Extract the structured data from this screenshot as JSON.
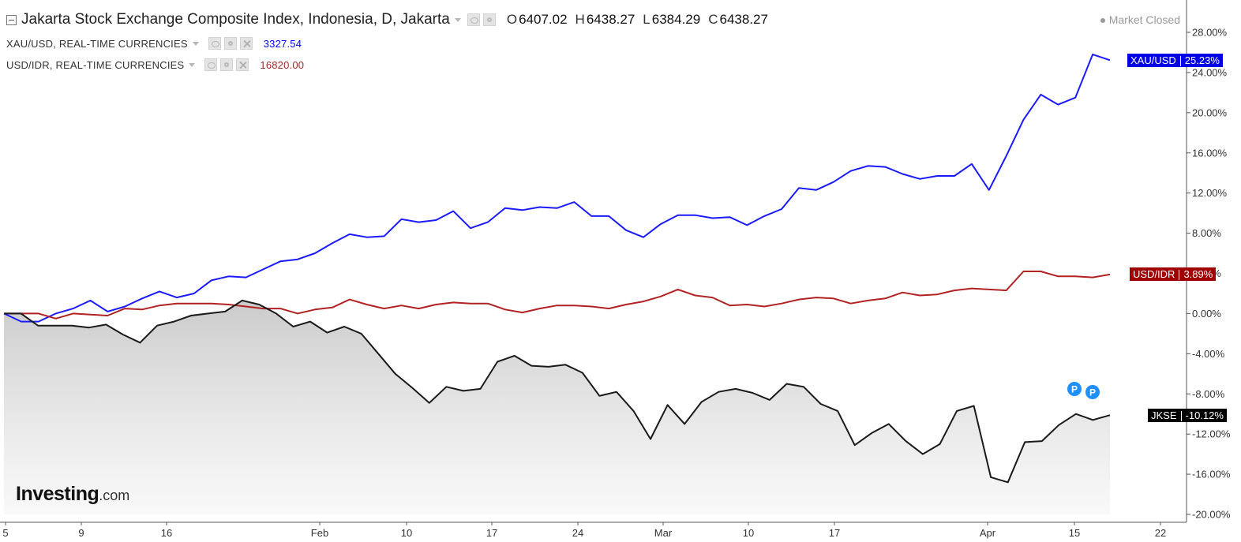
{
  "header": {
    "main": {
      "title": "Jakarta Stock Exchange Composite Index, Indonesia, D, Jakarta",
      "ohlc": [
        {
          "k": "O",
          "v": "6407.02"
        },
        {
          "k": "H",
          "v": "6438.27"
        },
        {
          "k": "L",
          "v": "6384.29"
        },
        {
          "k": "C",
          "v": "6438.27"
        }
      ]
    },
    "overlays": [
      {
        "name": "XAU/USD, REAL-TIME CURRENCIES",
        "value": "3327.54",
        "color": "#0000ff"
      },
      {
        "name": "USD/IDR, REAL-TIME CURRENCIES",
        "value": "16820.00",
        "color": "#a52a2a"
      }
    ],
    "market_status": "Market Closed"
  },
  "logo": {
    "main": "Investing",
    "suffix": ".com"
  },
  "price_labels": [
    {
      "series": "XAU/USD",
      "value": "25.23%",
      "bg": "#0000e6"
    },
    {
      "series": "USD/IDR",
      "value": "3.89%",
      "bg": "#a00000"
    },
    {
      "series": "JKSE",
      "value": "-10.12%",
      "bg": "#000000"
    }
  ],
  "markers": [
    "P",
    "P"
  ],
  "chart_data": {
    "type": "line",
    "y_axis": {
      "ticks": [
        "28.00%",
        "24.00%",
        "20.00%",
        "16.00%",
        "12.00%",
        "8.00%",
        "4.00%",
        "0.00%",
        "-4.00%",
        "-8.00%",
        "-12.00%",
        "-16.00%",
        "-20.00%"
      ],
      "ylim": [
        -20,
        28
      ],
      "position": "right"
    },
    "x_axis": {
      "ticks": [
        {
          "label": "5",
          "date": "2025-01-05"
        },
        {
          "label": "9",
          "date": "2025-01-09"
        },
        {
          "label": "16",
          "date": "2025-01-16"
        },
        {
          "label": "Feb",
          "date": "2025-02-01"
        },
        {
          "label": "10",
          "date": "2025-02-10"
        },
        {
          "label": "17",
          "date": "2025-02-17"
        },
        {
          "label": "24",
          "date": "2025-02-24"
        },
        {
          "label": "Mar",
          "date": "2025-03-01"
        },
        {
          "label": "10",
          "date": "2025-03-10"
        },
        {
          "label": "17",
          "date": "2025-03-17"
        },
        {
          "label": "Apr",
          "date": "2025-04-01"
        },
        {
          "label": "15",
          "date": "2025-04-15"
        },
        {
          "label": "22",
          "date": "2025-04-22"
        }
      ]
    },
    "series": [
      {
        "name": "XAU/USD",
        "color": "#1a1aff",
        "points": [
          [
            "2025-01-05",
            0
          ],
          [
            "2025-01-06",
            -0.8
          ],
          [
            "2025-01-07",
            -0.8
          ],
          [
            "2025-01-08",
            0
          ],
          [
            "2025-01-09",
            0.5
          ],
          [
            "2025-01-10",
            1.3
          ],
          [
            "2025-01-11",
            0.2
          ],
          [
            "2025-01-12",
            0.7
          ],
          [
            "2025-01-13",
            1.5
          ],
          [
            "2025-01-14",
            2.2
          ],
          [
            "2025-01-15",
            1.6
          ],
          [
            "2025-01-16",
            2.0
          ],
          [
            "2025-01-17",
            3.3
          ],
          [
            "2025-01-18",
            3.7
          ],
          [
            "2025-01-19",
            3.6
          ],
          [
            "2025-01-20",
            4.4
          ],
          [
            "2025-01-21",
            5.2
          ],
          [
            "2025-01-22",
            5.4
          ],
          [
            "2025-01-23",
            6.0
          ],
          [
            "2025-01-24",
            7.0
          ],
          [
            "2025-01-25",
            7.9
          ],
          [
            "2025-01-26",
            7.6
          ],
          [
            "2025-01-27",
            7.7
          ],
          [
            "2025-01-28",
            9.4
          ],
          [
            "2025-01-29",
            9.1
          ],
          [
            "2025-01-30",
            9.3
          ],
          [
            "2025-01-31",
            10.2
          ],
          [
            "2025-02-01",
            8.5
          ],
          [
            "2025-02-02",
            9.1
          ],
          [
            "2025-02-03",
            10.5
          ],
          [
            "2025-02-04",
            10.3
          ],
          [
            "2025-02-05",
            10.6
          ],
          [
            "2025-02-06",
            10.5
          ],
          [
            "2025-02-07",
            11.1
          ],
          [
            "2025-02-08",
            9.7
          ],
          [
            "2025-02-09",
            9.7
          ],
          [
            "2025-02-10",
            8.3
          ],
          [
            "2025-02-11",
            7.6
          ],
          [
            "2025-02-12",
            8.9
          ],
          [
            "2025-02-13",
            9.8
          ],
          [
            "2025-02-14",
            9.8
          ],
          [
            "2025-02-15",
            9.5
          ],
          [
            "2025-02-16",
            9.6
          ],
          [
            "2025-02-17",
            8.8
          ],
          [
            "2025-02-18",
            9.7
          ],
          [
            "2025-02-19",
            10.4
          ],
          [
            "2025-02-20",
            12.5
          ],
          [
            "2025-02-21",
            12.3
          ],
          [
            "2025-02-22",
            13.1
          ],
          [
            "2025-02-23",
            14.2
          ],
          [
            "2025-02-24",
            14.7
          ],
          [
            "2025-02-25",
            14.6
          ],
          [
            "2025-02-26",
            13.9
          ],
          [
            "2025-02-27",
            13.4
          ],
          [
            "2025-02-28",
            13.7
          ],
          [
            "2025-03-01",
            13.7
          ],
          [
            "2025-03-02",
            14.9
          ],
          [
            "2025-03-03",
            12.3
          ],
          [
            "2025-03-04",
            15.7
          ],
          [
            "2025-03-05",
            19.3
          ],
          [
            "2025-03-06",
            21.8
          ],
          [
            "2025-03-07",
            20.8
          ],
          [
            "2025-03-08",
            21.5
          ],
          [
            "2025-03-09",
            25.8
          ],
          [
            "2025-03-10",
            25.23
          ]
        ]
      },
      {
        "name": "USD/IDR",
        "color": "#b22222",
        "points": [
          [
            "2025-01-05",
            0
          ],
          [
            "2025-01-06",
            0
          ],
          [
            "2025-01-07",
            0
          ],
          [
            "2025-01-08",
            -0.5
          ],
          [
            "2025-01-09",
            0
          ],
          [
            "2025-01-10",
            -0.1
          ],
          [
            "2025-01-11",
            -0.2
          ],
          [
            "2025-01-12",
            0.5
          ],
          [
            "2025-01-13",
            0.4
          ],
          [
            "2025-01-14",
            0.8
          ],
          [
            "2025-01-15",
            1.0
          ],
          [
            "2025-01-16",
            1.0
          ],
          [
            "2025-01-17",
            1.0
          ],
          [
            "2025-01-18",
            0.9
          ],
          [
            "2025-01-19",
            0.7
          ],
          [
            "2025-01-20",
            0.5
          ],
          [
            "2025-01-21",
            0.5
          ],
          [
            "2025-01-22",
            0
          ],
          [
            "2025-01-23",
            0.4
          ],
          [
            "2025-01-24",
            0.6
          ],
          [
            "2025-01-25",
            1.4
          ],
          [
            "2025-01-26",
            0.9
          ],
          [
            "2025-01-27",
            0.5
          ],
          [
            "2025-01-28",
            0.8
          ],
          [
            "2025-01-29",
            0.5
          ],
          [
            "2025-01-30",
            0.9
          ],
          [
            "2025-01-31",
            1.1
          ],
          [
            "2025-02-01",
            1.0
          ],
          [
            "2025-02-02",
            1.0
          ],
          [
            "2025-02-03",
            0.4
          ],
          [
            "2025-02-04",
            0.1
          ],
          [
            "2025-02-05",
            0.5
          ],
          [
            "2025-02-06",
            0.8
          ],
          [
            "2025-02-07",
            0.8
          ],
          [
            "2025-02-08",
            0.7
          ],
          [
            "2025-02-09",
            0.5
          ],
          [
            "2025-02-10",
            0.9
          ],
          [
            "2025-02-11",
            1.2
          ],
          [
            "2025-02-12",
            1.7
          ],
          [
            "2025-02-13",
            2.4
          ],
          [
            "2025-02-14",
            1.8
          ],
          [
            "2025-02-15",
            1.6
          ],
          [
            "2025-02-16",
            0.8
          ],
          [
            "2025-02-17",
            0.9
          ],
          [
            "2025-02-18",
            0.7
          ],
          [
            "2025-02-19",
            1.0
          ],
          [
            "2025-02-20",
            1.4
          ],
          [
            "2025-02-21",
            1.6
          ],
          [
            "2025-02-22",
            1.5
          ],
          [
            "2025-02-23",
            1.0
          ],
          [
            "2025-02-24",
            1.3
          ],
          [
            "2025-02-25",
            1.5
          ],
          [
            "2025-02-26",
            2.1
          ],
          [
            "2025-02-27",
            1.8
          ],
          [
            "2025-02-28",
            1.9
          ],
          [
            "2025-03-01",
            2.3
          ],
          [
            "2025-03-02",
            2.5
          ],
          [
            "2025-03-03",
            2.4
          ],
          [
            "2025-03-04",
            2.3
          ],
          [
            "2025-03-05",
            4.2
          ],
          [
            "2025-03-06",
            4.2
          ],
          [
            "2025-03-07",
            3.7
          ],
          [
            "2025-03-08",
            3.7
          ],
          [
            "2025-03-09",
            3.6
          ],
          [
            "2025-03-10",
            3.89
          ]
        ]
      },
      {
        "name": "JKSE",
        "color": "#1a1a1a",
        "area": true,
        "points": [
          [
            "2025-01-05",
            0
          ],
          [
            "2025-01-06",
            0
          ],
          [
            "2025-01-07",
            -1.2
          ],
          [
            "2025-01-08",
            -1.2
          ],
          [
            "2025-01-09",
            -1.2
          ],
          [
            "2025-01-10",
            -1.4
          ],
          [
            "2025-01-11",
            -1.1
          ],
          [
            "2025-01-12",
            -2.1
          ],
          [
            "2025-01-13",
            -2.9
          ],
          [
            "2025-01-14",
            -1.2
          ],
          [
            "2025-01-15",
            -0.8
          ],
          [
            "2025-01-16",
            -0.2
          ],
          [
            "2025-01-17",
            0
          ],
          [
            "2025-01-18",
            0.2
          ],
          [
            "2025-01-19",
            1.3
          ],
          [
            "2025-01-20",
            0.9
          ],
          [
            "2025-01-21",
            0
          ],
          [
            "2025-01-22",
            -1.3
          ],
          [
            "2025-01-23",
            -0.8
          ],
          [
            "2025-01-24",
            -1.9
          ],
          [
            "2025-01-25",
            -1.3
          ],
          [
            "2025-01-26",
            -2.0
          ],
          [
            "2025-01-27",
            -4.0
          ],
          [
            "2025-01-28",
            -6.0
          ],
          [
            "2025-01-29",
            -7.4
          ],
          [
            "2025-01-30",
            -8.9
          ],
          [
            "2025-01-31",
            -7.3
          ],
          [
            "2025-02-01",
            -7.7
          ],
          [
            "2025-02-02",
            -7.5
          ],
          [
            "2025-02-03",
            -4.8
          ],
          [
            "2025-02-04",
            -4.2
          ],
          [
            "2025-02-05",
            -5.2
          ],
          [
            "2025-02-06",
            -5.3
          ],
          [
            "2025-02-07",
            -5.1
          ],
          [
            "2025-02-08",
            -5.9
          ],
          [
            "2025-02-09",
            -8.2
          ],
          [
            "2025-02-10",
            -7.8
          ],
          [
            "2025-02-11",
            -9.7
          ],
          [
            "2025-02-12",
            -12.5
          ],
          [
            "2025-02-13",
            -9.1
          ],
          [
            "2025-02-14",
            -11.0
          ],
          [
            "2025-02-15",
            -8.8
          ],
          [
            "2025-02-16",
            -7.8
          ],
          [
            "2025-02-17",
            -7.5
          ],
          [
            "2025-02-18",
            -7.9
          ],
          [
            "2025-02-19",
            -8.6
          ],
          [
            "2025-02-20",
            -7.0
          ],
          [
            "2025-02-21",
            -7.3
          ],
          [
            "2025-02-22",
            -9.0
          ],
          [
            "2025-02-23",
            -9.7
          ],
          [
            "2025-02-24",
            -13.1
          ],
          [
            "2025-02-25",
            -11.9
          ],
          [
            "2025-02-26",
            -11.0
          ],
          [
            "2025-02-27",
            -12.7
          ],
          [
            "2025-02-28",
            -14.0
          ],
          [
            "2025-03-01",
            -13.0
          ],
          [
            "2025-03-02",
            -9.7
          ],
          [
            "2025-03-03",
            -9.2
          ],
          [
            "2025-03-04",
            -16.3
          ],
          [
            "2025-03-05",
            -16.8
          ],
          [
            "2025-03-06",
            -12.8
          ],
          [
            "2025-03-07",
            -12.7
          ],
          [
            "2025-03-08",
            -11.1
          ],
          [
            "2025-03-09",
            -10.0
          ],
          [
            "2025-03-10",
            -10.6
          ],
          [
            "2025-03-11",
            -10.12
          ]
        ]
      }
    ],
    "legend": "top-left",
    "grid": false
  }
}
